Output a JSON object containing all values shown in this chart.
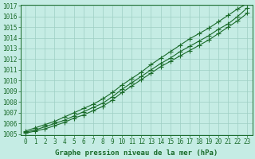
{
  "xlabel": "Graphe pression niveau de la mer (hPa)",
  "x": [
    0,
    1,
    2,
    3,
    4,
    5,
    6,
    7,
    8,
    9,
    10,
    11,
    12,
    13,
    14,
    15,
    16,
    17,
    18,
    19,
    20,
    21,
    22,
    23
  ],
  "y_mean": [
    1005.2,
    1005.4,
    1005.7,
    1006.0,
    1006.3,
    1006.7,
    1007.1,
    1007.5,
    1007.9,
    1008.5,
    1009.2,
    1009.8,
    1010.4,
    1011.0,
    1011.6,
    1012.1,
    1012.7,
    1013.2,
    1013.7,
    1014.2,
    1014.8,
    1015.3,
    1016.0,
    1016.8
  ],
  "y_upper": [
    1005.3,
    1005.6,
    1005.9,
    1006.2,
    1006.6,
    1007.0,
    1007.4,
    1007.8,
    1008.3,
    1008.9,
    1009.6,
    1010.2,
    1010.8,
    1011.5,
    1012.1,
    1012.7,
    1013.3,
    1013.9,
    1014.4,
    1014.9,
    1015.5,
    1016.1,
    1016.7,
    1017.2
  ],
  "y_lower": [
    1005.1,
    1005.3,
    1005.5,
    1005.8,
    1006.1,
    1006.5,
    1006.8,
    1007.2,
    1007.6,
    1008.2,
    1008.9,
    1009.5,
    1010.1,
    1010.7,
    1011.3,
    1011.8,
    1012.3,
    1012.8,
    1013.3,
    1013.8,
    1014.4,
    1015.0,
    1015.6,
    1016.3
  ],
  "bg_color": "#c5ece4",
  "line_color": "#1a6b2a",
  "grid_color": "#9ecfc4",
  "ylim": [
    1005,
    1017
  ],
  "xlim": [
    -0.5,
    23.5
  ],
  "yticks": [
    1005,
    1006,
    1007,
    1008,
    1009,
    1010,
    1011,
    1012,
    1013,
    1014,
    1015,
    1016,
    1017
  ],
  "xticks": [
    0,
    1,
    2,
    3,
    4,
    5,
    6,
    7,
    8,
    9,
    10,
    11,
    12,
    13,
    14,
    15,
    16,
    17,
    18,
    19,
    20,
    21,
    22,
    23
  ],
  "marker": "+",
  "markersize": 4,
  "linewidth": 0.8,
  "xlabel_fontsize": 6.5,
  "tick_fontsize": 5.5
}
